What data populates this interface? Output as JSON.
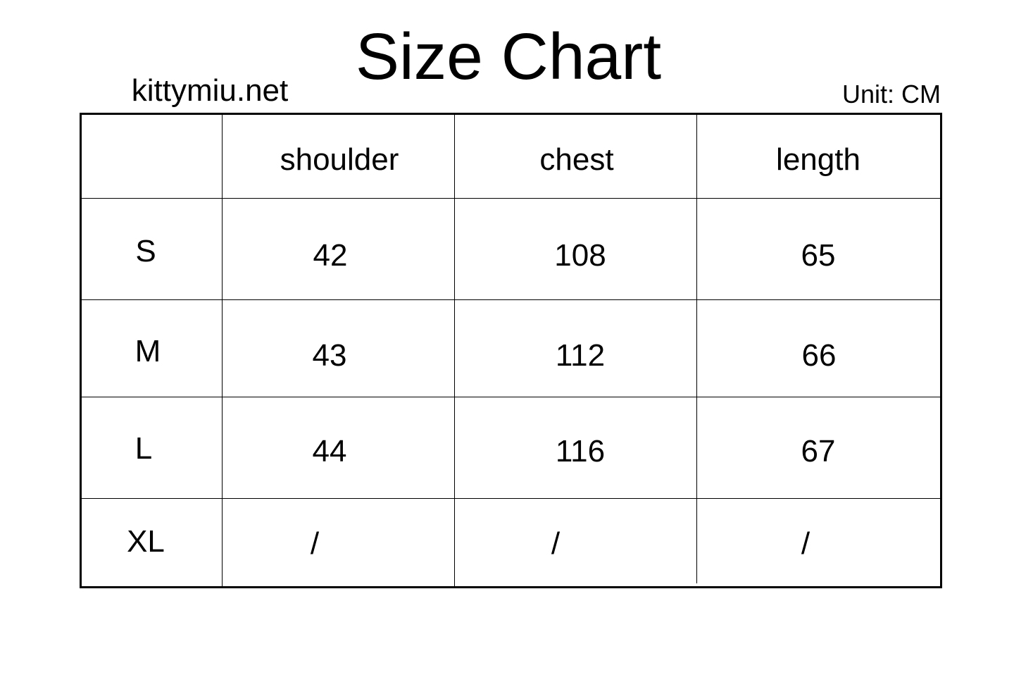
{
  "header": {
    "title": "Size Chart",
    "site": "kittymiu.net",
    "unit": "Unit: CM"
  },
  "table": {
    "columns": [
      "",
      "shoulder",
      "chest",
      "length"
    ],
    "rows": [
      {
        "size": "S",
        "values": [
          "42",
          "108",
          "65"
        ]
      },
      {
        "size": "M",
        "values": [
          "43",
          "112",
          "66"
        ]
      },
      {
        "size": "L",
        "values": [
          "44",
          "116",
          "67"
        ]
      },
      {
        "size": "XL",
        "values": [
          "/",
          "/",
          "/"
        ]
      }
    ]
  }
}
